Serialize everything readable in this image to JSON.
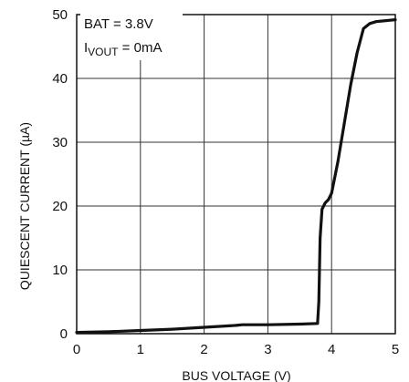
{
  "chart_data": {
    "type": "line",
    "title": "",
    "xlabel": "BUS VOLTAGE (V)",
    "ylabel": "QUIESCENT CURRENT (µA)",
    "xlim": [
      0,
      5
    ],
    "ylim": [
      0,
      50
    ],
    "xticks": [
      "0",
      "1",
      "2",
      "3",
      "4",
      "5"
    ],
    "yticks": [
      "0",
      "10",
      "20",
      "30",
      "40",
      "50"
    ],
    "grid": true,
    "annotations": {
      "line1": "BAT = 3.8V",
      "line2_main": "I",
      "line2_sub": "VOUT",
      "line2_rest": " = 0mA"
    },
    "series": [
      {
        "color": "#111111",
        "x": [
          0,
          0.5,
          1.0,
          1.5,
          2.0,
          2.5,
          2.6,
          3.0,
          3.5,
          3.78,
          3.8,
          3.82,
          3.85,
          3.9,
          3.95,
          4.0,
          4.1,
          4.2,
          4.3,
          4.4,
          4.5,
          4.6,
          4.7,
          4.8,
          4.9,
          5.0
        ],
        "y": [
          0.2,
          0.3,
          0.5,
          0.7,
          1.0,
          1.3,
          1.4,
          1.4,
          1.5,
          1.6,
          5.0,
          15.0,
          19.5,
          20.5,
          21.0,
          22.0,
          27.0,
          33.0,
          39.0,
          44.0,
          47.8,
          48.6,
          48.9,
          49.0,
          49.1,
          49.2
        ]
      }
    ]
  }
}
